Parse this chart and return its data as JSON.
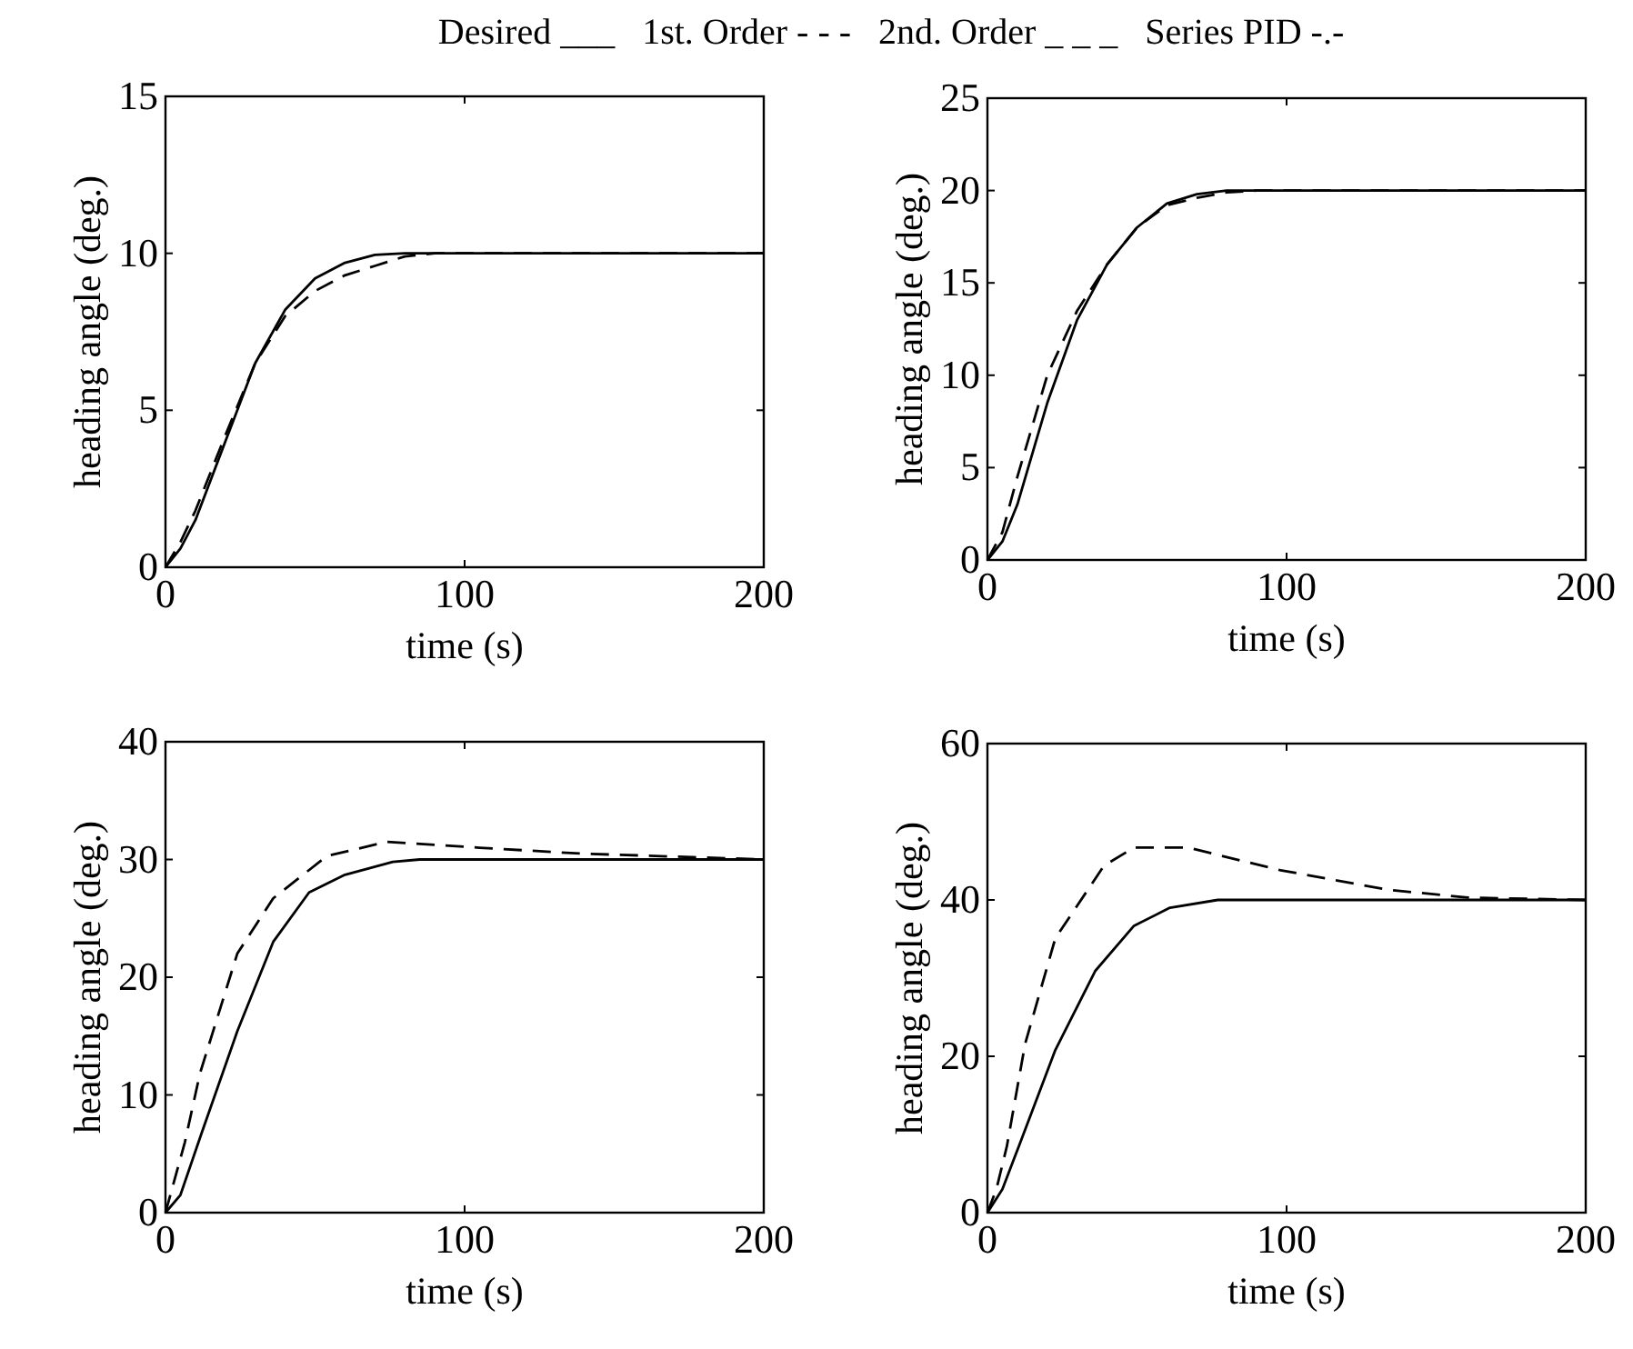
{
  "chart_data": [
    {
      "type": "line",
      "title": "Desired ___   1st. Order - - -   2nd. Order _ _ _   Series PID -.-",
      "xlabel": "time (s)",
      "ylabel": "heading angle (deg.)",
      "xlim": [
        0,
        200
      ],
      "xticks": [
        0,
        100,
        200
      ],
      "ylim": [
        0,
        15
      ],
      "yticks": [
        0,
        5,
        10,
        15
      ],
      "grid": false,
      "series": [
        {
          "color": "#000000",
          "line_style": "solid",
          "x": [
            0,
            5,
            10,
            20,
            30,
            40,
            50,
            60,
            70,
            80,
            200
          ],
          "values": [
            0,
            0.6,
            1.5,
            4,
            6.5,
            8.2,
            9.2,
            9.7,
            9.95,
            10,
            10
          ]
        },
        {
          "color": "#000000",
          "line_style": "dashed",
          "x": [
            0,
            5,
            10,
            20,
            30,
            40,
            50,
            60,
            70,
            80,
            90,
            200
          ],
          "values": [
            0,
            0.8,
            1.8,
            4.2,
            6.5,
            8,
            8.8,
            9.3,
            9.6,
            9.9,
            10,
            10
          ]
        }
      ]
    },
    {
      "type": "line",
      "xlabel": "time (s)",
      "ylabel": "heading angle (deg.)",
      "xlim": [
        0,
        200
      ],
      "xticks": [
        0,
        100,
        200
      ],
      "ylim": [
        0,
        25
      ],
      "yticks": [
        0,
        5,
        10,
        15,
        20,
        25
      ],
      "grid": false,
      "series": [
        {
          "color": "#000000",
          "line_style": "solid",
          "x": [
            0,
            5,
            10,
            20,
            30,
            40,
            50,
            60,
            70,
            80,
            200
          ],
          "values": [
            0,
            1,
            3,
            8.5,
            13,
            16,
            18,
            19.3,
            19.8,
            20,
            20
          ]
        },
        {
          "color": "#000000",
          "line_style": "dashed",
          "x": [
            0,
            5,
            10,
            20,
            30,
            40,
            50,
            60,
            70,
            80,
            90,
            200
          ],
          "values": [
            0,
            1.5,
            4.5,
            10,
            13.5,
            16,
            18,
            19.2,
            19.6,
            19.9,
            20,
            20
          ]
        }
      ]
    },
    {
      "type": "line",
      "xlabel": "time (s)",
      "ylabel": "heading angle (deg.)",
      "xlim": [
        0,
        200
      ],
      "xticks": [
        0,
        100,
        200
      ],
      "ylim": [
        0,
        40
      ],
      "yticks": [
        0,
        10,
        20,
        30,
        40
      ],
      "grid": false,
      "series": [
        {
          "color": "#000000",
          "line_style": "solid",
          "x": [
            0,
            5,
            12,
            24,
            36,
            48,
            60,
            76,
            85,
            200
          ],
          "values": [
            0,
            1.5,
            6.7,
            15.4,
            23,
            27.2,
            28.7,
            29.8,
            30,
            30
          ]
        },
        {
          "color": "#000000",
          "line_style": "dashed",
          "x": [
            0,
            6.5,
            11.5,
            24,
            36,
            54,
            74,
            105,
            139,
            176,
            200
          ],
          "values": [
            0,
            6,
            11.8,
            22,
            26.7,
            30.3,
            31.5,
            31,
            30.5,
            30.2,
            30
          ]
        }
      ]
    },
    {
      "type": "line",
      "xlabel": "time (s)",
      "ylabel": "heading angle (deg.)",
      "xlim": [
        0,
        200
      ],
      "xticks": [
        0,
        100,
        200
      ],
      "ylim": [
        0,
        60
      ],
      "yticks": [
        0,
        20,
        40,
        60
      ],
      "grid": false,
      "series": [
        {
          "color": "#000000",
          "line_style": "solid",
          "x": [
            0,
            5,
            10.5,
            22.7,
            36,
            49,
            61,
            77,
            200
          ],
          "values": [
            0,
            3,
            8.5,
            20.8,
            30.9,
            36.7,
            39,
            40,
            40
          ]
        },
        {
          "color": "#000000",
          "line_style": "dashed",
          "x": [
            0,
            3,
            6.5,
            12.6,
            22.7,
            39,
            49,
            67,
            98,
            134,
            160.5,
            200
          ],
          "values": [
            0,
            3,
            8.5,
            21.6,
            35.1,
            44.4,
            46.7,
            46.7,
            43.8,
            41.3,
            40.3,
            40
          ]
        }
      ]
    }
  ]
}
